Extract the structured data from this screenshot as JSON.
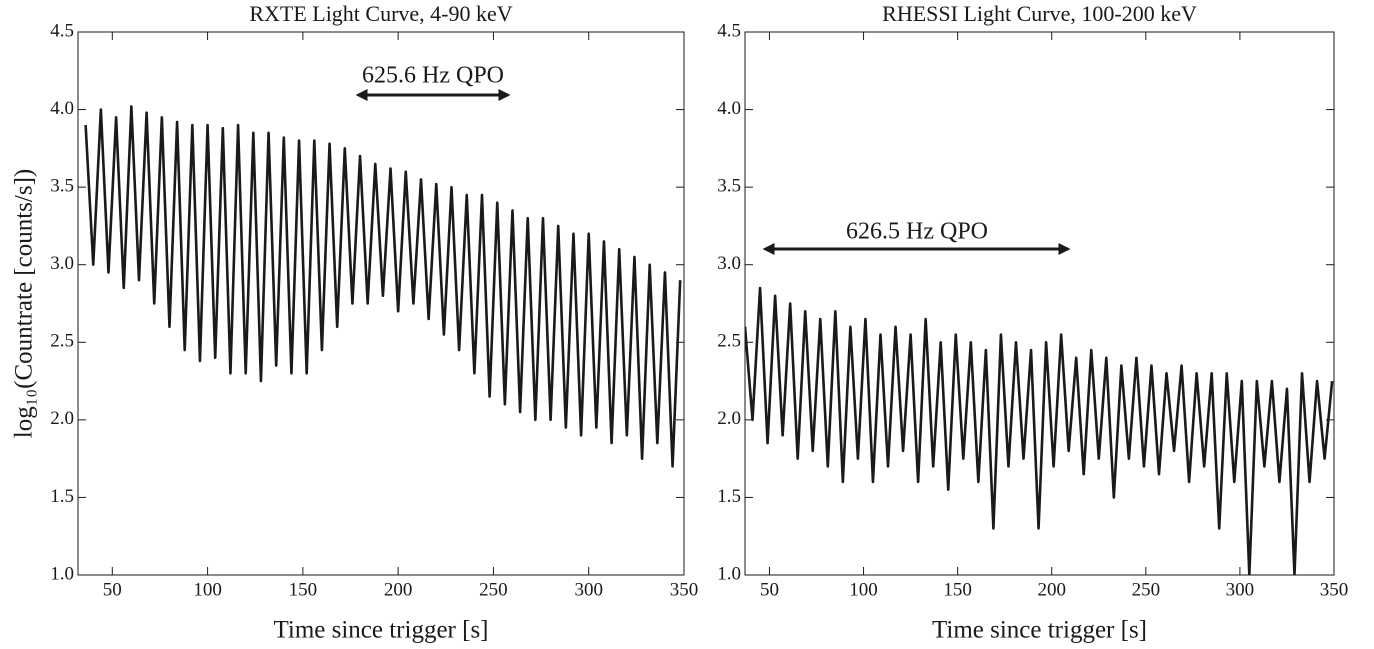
{
  "chart_data": [
    {
      "type": "line",
      "title": "RXTE Light Curve, 4-90 keV",
      "xlabel": "Time since trigger [s]",
      "ylabel": "log₁₀(Countrate [counts/s])",
      "annotation": "625.6 Hz QPO",
      "color": "#1a1a1a",
      "xlim": [
        32,
        350
      ],
      "ylim": [
        1,
        4.5
      ],
      "xticks": [
        50,
        100,
        150,
        200,
        250,
        300,
        350
      ],
      "yticks": [
        {
          "value": 1,
          "label": "1.0"
        },
        1.5,
        {
          "value": 2,
          "label": "2.0"
        },
        2.5,
        {
          "value": 3,
          "label": "3.0"
        },
        3.5,
        {
          "value": 4,
          "label": "4.0"
        },
        4.5
      ],
      "x": [
        36,
        40,
        44,
        48,
        52,
        56,
        60,
        64,
        68,
        72,
        76,
        80,
        84,
        88,
        92,
        96,
        100,
        104,
        108,
        112,
        116,
        120,
        124,
        128,
        132,
        136,
        140,
        144,
        148,
        152,
        156,
        160,
        164,
        168,
        172,
        176,
        180,
        184,
        188,
        192,
        196,
        200,
        204,
        208,
        212,
        216,
        220,
        224,
        228,
        232,
        236,
        240,
        244,
        248,
        252,
        256,
        260,
        264,
        268,
        272,
        276,
        280,
        284,
        288,
        292,
        296,
        300,
        304,
        308,
        312,
        316,
        320,
        324,
        328,
        332,
        336,
        340,
        344,
        348
      ],
      "values": [
        3.9,
        3.0,
        4.0,
        2.95,
        3.95,
        2.85,
        4.02,
        2.9,
        3.98,
        2.75,
        3.95,
        2.6,
        3.92,
        2.45,
        3.9,
        2.38,
        3.9,
        2.4,
        3.88,
        2.3,
        3.9,
        2.3,
        3.85,
        2.25,
        3.85,
        2.35,
        3.82,
        2.3,
        3.8,
        2.3,
        3.8,
        2.45,
        3.78,
        2.6,
        3.75,
        2.75,
        3.7,
        2.75,
        3.65,
        2.8,
        3.62,
        2.7,
        3.6,
        2.75,
        3.55,
        2.65,
        3.52,
        2.55,
        3.5,
        2.45,
        3.45,
        2.3,
        3.45,
        2.15,
        3.4,
        2.1,
        3.35,
        2.05,
        3.3,
        2.0,
        3.3,
        2.0,
        3.25,
        1.95,
        3.2,
        1.9,
        3.2,
        1.95,
        3.15,
        1.85,
        3.1,
        1.9,
        3.05,
        1.75,
        3.0,
        1.85,
        2.95,
        1.7,
        2.9
      ]
    },
    {
      "type": "line",
      "title": "RHESSI Light Curve, 100-200 keV",
      "xlabel": "Time since trigger [s]",
      "annotation": "626.5 Hz QPO",
      "color": "#1a1a1a",
      "xlim": [
        37,
        350
      ],
      "ylim": [
        1,
        4.5
      ],
      "xticks": [
        50,
        100,
        150,
        200,
        250,
        300,
        350
      ],
      "yticks": [
        {
          "value": 1,
          "label": "1.0"
        },
        1.5,
        {
          "value": 2,
          "label": "2.0"
        },
        2.5,
        {
          "value": 3,
          "label": "3.0"
        },
        3.5,
        {
          "value": 4,
          "label": "4.0"
        },
        4.5
      ],
      "x": [
        37,
        41,
        45,
        49,
        53,
        57,
        61,
        65,
        69,
        73,
        77,
        81,
        85,
        89,
        93,
        97,
        101,
        105,
        109,
        113,
        117,
        121,
        125,
        129,
        133,
        137,
        141,
        145,
        149,
        153,
        157,
        161,
        165,
        169,
        173,
        177,
        181,
        185,
        189,
        193,
        197,
        201,
        205,
        209,
        213,
        217,
        221,
        225,
        229,
        233,
        237,
        241,
        245,
        249,
        253,
        257,
        261,
        265,
        269,
        273,
        277,
        281,
        285,
        289,
        293,
        297,
        301,
        305,
        309,
        313,
        317,
        321,
        325,
        329,
        333,
        337,
        341,
        345,
        349
      ],
      "values": [
        2.6,
        2.0,
        2.85,
        1.85,
        2.8,
        1.9,
        2.75,
        1.75,
        2.7,
        1.8,
        2.65,
        1.7,
        2.7,
        1.6,
        2.6,
        1.75,
        2.65,
        1.6,
        2.55,
        1.7,
        2.6,
        1.8,
        2.55,
        1.6,
        2.65,
        1.7,
        2.5,
        1.55,
        2.55,
        1.75,
        2.5,
        1.6,
        2.45,
        1.3,
        2.55,
        1.7,
        2.5,
        1.75,
        2.45,
        1.3,
        2.5,
        1.7,
        2.55,
        1.8,
        2.4,
        1.65,
        2.45,
        1.75,
        2.4,
        1.5,
        2.35,
        1.75,
        2.4,
        1.7,
        2.35,
        1.65,
        2.3,
        1.8,
        2.35,
        1.6,
        2.3,
        1.7,
        2.3,
        1.3,
        2.3,
        1.6,
        2.25,
        1.0,
        2.25,
        1.7,
        2.25,
        1.6,
        2.2,
        1.0,
        2.3,
        1.6,
        2.25,
        1.75,
        2.25
      ]
    }
  ]
}
